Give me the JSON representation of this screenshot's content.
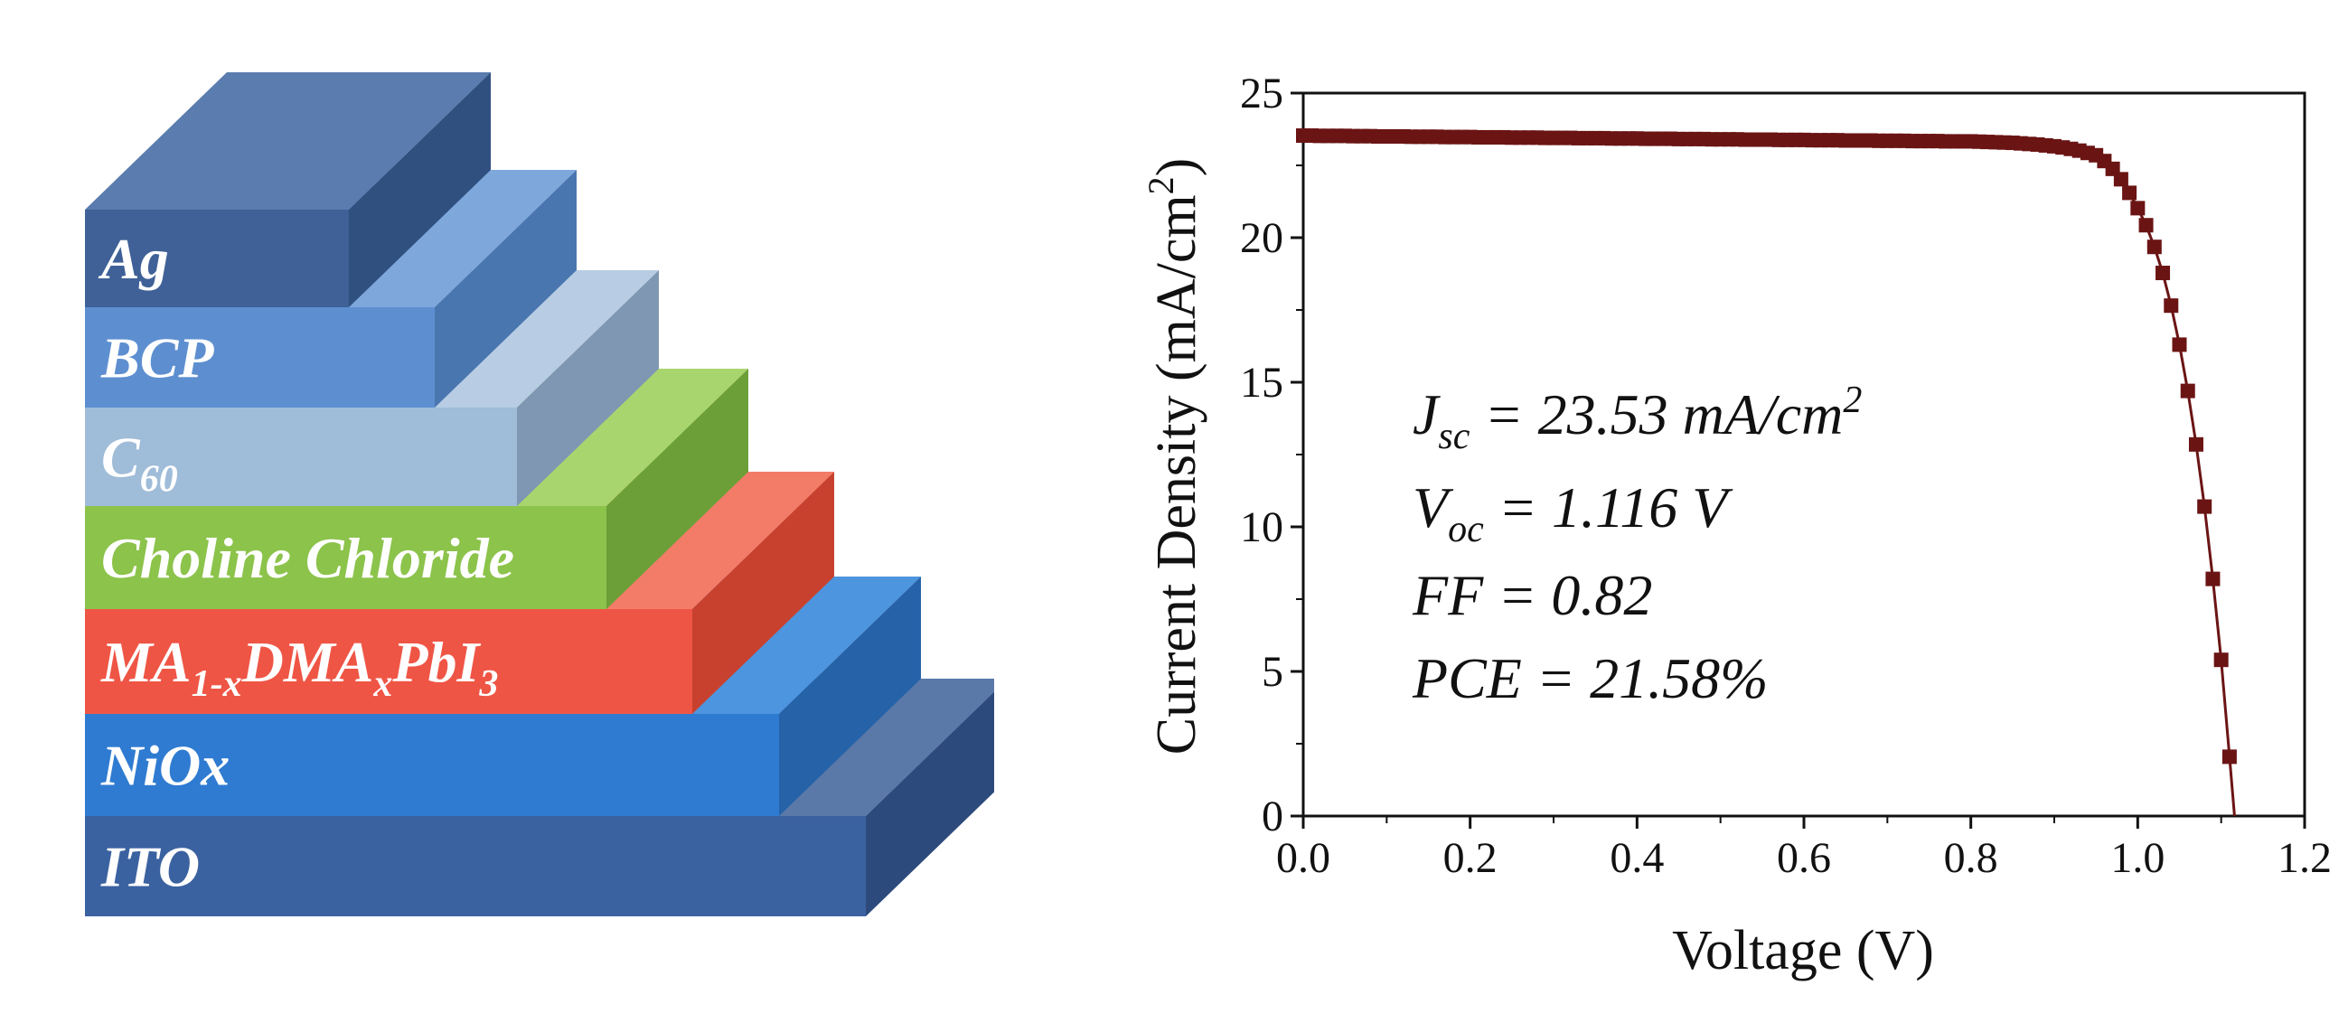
{
  "diagram": {
    "layers": [
      {
        "label": "Ag",
        "sub": "",
        "label2": "",
        "sub2": "",
        "label3": "",
        "sub3": "",
        "colors": {
          "front": "#3f6197",
          "top": "#5a7cae",
          "side": "#30507f"
        }
      },
      {
        "label": "BCP",
        "sub": "",
        "label2": "",
        "sub2": "",
        "label3": "",
        "sub3": "",
        "colors": {
          "front": "#5d8fd0",
          "top": "#7ea8dc",
          "side": "#4a76b0"
        }
      },
      {
        "label": "C",
        "sub": "60",
        "label2": "",
        "sub2": "",
        "label3": "",
        "sub3": "",
        "colors": {
          "front": "#9fbcd9",
          "top": "#b8cde3",
          "side": "#7f97b3"
        }
      },
      {
        "label": "Choline Chloride",
        "sub": "",
        "label2": "",
        "sub2": "",
        "label3": "",
        "sub3": "",
        "colors": {
          "front": "#8cc34b",
          "top": "#a9d56e",
          "side": "#6c9f38"
        }
      },
      {
        "label": "MA",
        "sub": "1-x",
        "label2": "DMA",
        "sub2": "x",
        "label3": "PbI",
        "sub3": "3",
        "colors": {
          "front": "#ef5545",
          "top": "#f27c68",
          "side": "#c8412f"
        }
      },
      {
        "label": "NiOx",
        "sub": "",
        "label2": "",
        "sub2": "",
        "label3": "",
        "sub3": "",
        "colors": {
          "front": "#2f7bd1",
          "top": "#4d95de",
          "side": "#2562a8"
        }
      },
      {
        "label": "ITO",
        "sub": "",
        "label2": "",
        "sub2": "",
        "label3": "",
        "sub3": "",
        "colors": {
          "front": "#3b62a0",
          "top": "#5a79a8",
          "side": "#2d4a7c"
        }
      }
    ]
  },
  "chart_data": {
    "type": "scatter",
    "xlabel": "Voltage (V)",
    "ylabel_main": "Current Density (mA/cm",
    "ylabel_sup": "2",
    "ylabel_end": ")",
    "xlim": [
      0,
      1.2
    ],
    "ylim": [
      0,
      25
    ],
    "xticks": [
      "0.0",
      "0.2",
      "0.4",
      "0.6",
      "0.8",
      "1.0",
      "1.2"
    ],
    "yticks": [
      "0",
      "5",
      "10",
      "15",
      "20",
      "25"
    ],
    "grid": false,
    "marker": "square",
    "color": "#6b1414",
    "x_start": 0,
    "x_step": 0.01,
    "y": [
      23.53,
      23.53,
      23.52,
      23.52,
      23.52,
      23.52,
      23.51,
      23.51,
      23.51,
      23.5,
      23.5,
      23.5,
      23.5,
      23.49,
      23.49,
      23.49,
      23.49,
      23.48,
      23.48,
      23.48,
      23.48,
      23.47,
      23.47,
      23.47,
      23.47,
      23.46,
      23.46,
      23.46,
      23.46,
      23.45,
      23.45,
      23.45,
      23.45,
      23.44,
      23.44,
      23.44,
      23.44,
      23.43,
      23.43,
      23.43,
      23.43,
      23.42,
      23.42,
      23.42,
      23.42,
      23.41,
      23.41,
      23.41,
      23.41,
      23.4,
      23.4,
      23.4,
      23.4,
      23.39,
      23.39,
      23.39,
      23.39,
      23.38,
      23.38,
      23.38,
      23.38,
      23.37,
      23.37,
      23.37,
      23.37,
      23.36,
      23.36,
      23.36,
      23.36,
      23.35,
      23.35,
      23.35,
      23.35,
      23.34,
      23.34,
      23.34,
      23.34,
      23.33,
      23.33,
      23.33,
      23.33,
      23.32,
      23.31,
      23.3,
      23.29,
      23.28,
      23.26,
      23.24,
      23.22,
      23.19,
      23.16,
      23.12,
      23.07,
      23.01,
      22.93,
      22.85,
      22.65,
      22.38,
      22.02,
      21.55,
      21.02,
      20.43,
      19.68,
      18.78,
      17.65,
      16.3,
      14.7,
      12.85,
      10.7,
      8.2,
      5.4,
      2.05
    ],
    "line_end": [
      1.116,
      0
    ],
    "annotations": [
      {
        "main": "J",
        "sub": "sc",
        "rest": " = 23.53 mA/cm",
        "sup": "2"
      },
      {
        "main": "V",
        "sub": "oc",
        "rest": " = 1.116 V",
        "sup": ""
      },
      {
        "main": "FF = 0.82",
        "sub": "",
        "rest": "",
        "sup": ""
      },
      {
        "main": "PCE = 21.58%",
        "sub": "",
        "rest": "",
        "sup": ""
      }
    ]
  }
}
